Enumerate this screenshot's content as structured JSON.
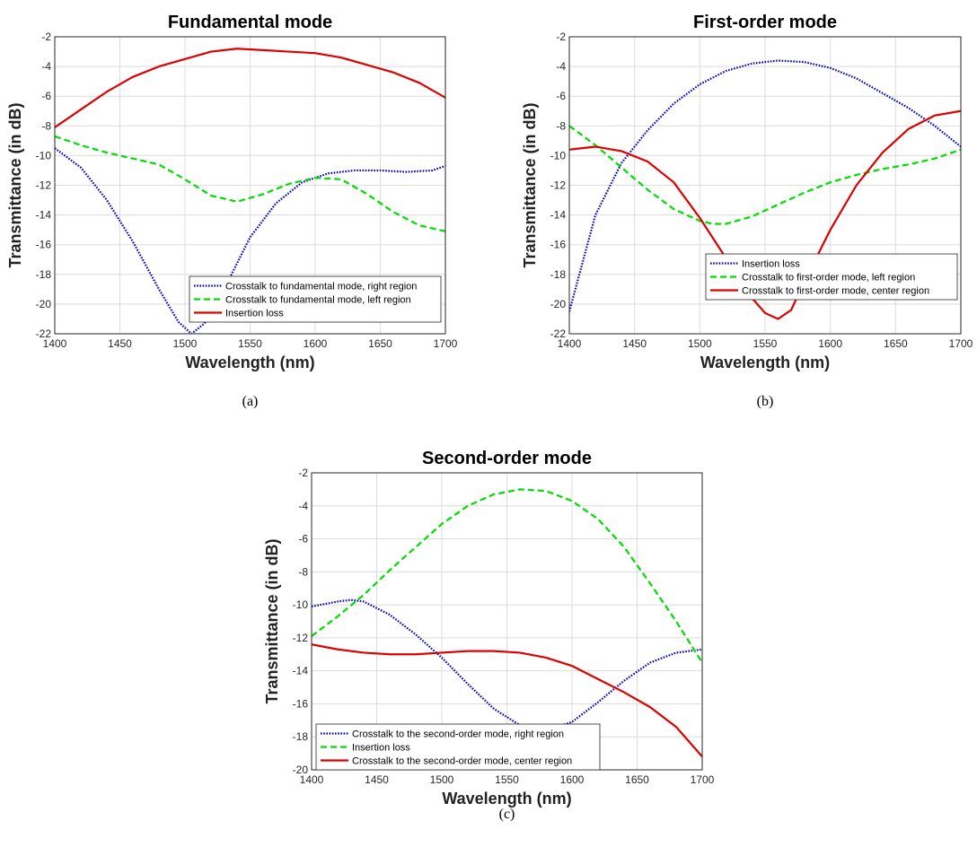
{
  "chart_data": [
    {
      "type": "line",
      "title": "Fundamental mode",
      "xlabel": "Wavelength (nm)",
      "ylabel": "Transmittance (in dB)",
      "caption": "(a)",
      "xlim": [
        1400,
        1700
      ],
      "ylim": [
        -22,
        -2
      ],
      "xticks": [
        "1400",
        "1450",
        "1500",
        "1550",
        "1600",
        "1650",
        "1700"
      ],
      "yticks": [
        "-22",
        "-20",
        "-18",
        "-16",
        "-14",
        "-12",
        "-10",
        "-8",
        "-6",
        "-4",
        "-2"
      ],
      "grid": true,
      "legend_position": "bottom-right",
      "series": [
        {
          "name": "Crosstalk to fundamental mode, right region",
          "style": "dotted",
          "color": "#0000cc",
          "x": [
            1400,
            1420,
            1440,
            1460,
            1480,
            1495,
            1505,
            1515,
            1530,
            1550,
            1570,
            1590,
            1610,
            1630,
            1650,
            1670,
            1690,
            1700
          ],
          "y": [
            -9.5,
            -10.8,
            -13.0,
            -15.8,
            -19.0,
            -21.2,
            -22.0,
            -21.3,
            -19.0,
            -15.5,
            -13.2,
            -11.8,
            -11.2,
            -11.0,
            -11.0,
            -11.1,
            -11.0,
            -10.7
          ]
        },
        {
          "name": "Crosstalk to fundamental mode, left region",
          "style": "dashed",
          "color": "#00dd00",
          "x": [
            1400,
            1420,
            1440,
            1460,
            1480,
            1500,
            1520,
            1540,
            1560,
            1580,
            1600,
            1620,
            1640,
            1660,
            1680,
            1700
          ],
          "y": [
            -8.7,
            -9.3,
            -9.8,
            -10.2,
            -10.6,
            -11.6,
            -12.7,
            -13.1,
            -12.6,
            -11.9,
            -11.5,
            -11.6,
            -12.6,
            -13.8,
            -14.7,
            -15.1
          ]
        },
        {
          "name": "Insertion loss",
          "style": "solid",
          "color": "#dd0000",
          "x": [
            1400,
            1420,
            1440,
            1460,
            1480,
            1500,
            1520,
            1540,
            1560,
            1580,
            1600,
            1620,
            1640,
            1660,
            1680,
            1700
          ],
          "y": [
            -8.1,
            -6.9,
            -5.7,
            -4.7,
            -4.0,
            -3.5,
            -3.0,
            -2.8,
            -2.9,
            -3.0,
            -3.1,
            -3.4,
            -3.9,
            -4.4,
            -5.1,
            -6.1
          ]
        }
      ]
    },
    {
      "type": "line",
      "title": "First-order mode",
      "xlabel": "Wavelength (nm)",
      "ylabel": "Transmittance (in dB)",
      "caption": "(b)",
      "xlim": [
        1400,
        1700
      ],
      "ylim": [
        -22,
        -2
      ],
      "xticks": [
        "1400",
        "1450",
        "1500",
        "1550",
        "1600",
        "1650",
        "1700"
      ],
      "yticks": [
        "-22",
        "-20",
        "-18",
        "-16",
        "-14",
        "-12",
        "-10",
        "-8",
        "-6",
        "-4",
        "-2"
      ],
      "grid": true,
      "legend_position": "bottom-right",
      "series": [
        {
          "name": "Insertion loss",
          "style": "dotted",
          "color": "#0000cc",
          "x": [
            1400,
            1420,
            1440,
            1460,
            1480,
            1500,
            1520,
            1540,
            1560,
            1580,
            1600,
            1620,
            1640,
            1660,
            1680,
            1700
          ],
          "y": [
            -20.5,
            -14.0,
            -10.5,
            -8.3,
            -6.5,
            -5.2,
            -4.3,
            -3.8,
            -3.6,
            -3.7,
            -4.1,
            -4.8,
            -5.8,
            -6.8,
            -8.0,
            -9.4
          ]
        },
        {
          "name": "Crosstalk to first-order mode, left region",
          "style": "dashed",
          "color": "#00dd00",
          "x": [
            1400,
            1420,
            1440,
            1460,
            1480,
            1500,
            1510,
            1520,
            1540,
            1560,
            1580,
            1600,
            1620,
            1640,
            1660,
            1680,
            1700
          ],
          "y": [
            -8.0,
            -9.3,
            -10.8,
            -12.3,
            -13.6,
            -14.4,
            -14.6,
            -14.6,
            -14.1,
            -13.3,
            -12.5,
            -11.8,
            -11.3,
            -10.9,
            -10.6,
            -10.2,
            -9.6
          ]
        },
        {
          "name": "Crosstalk to first-order mode, center region",
          "style": "solid",
          "color": "#dd0000",
          "x": [
            1400,
            1420,
            1440,
            1460,
            1480,
            1500,
            1520,
            1540,
            1550,
            1560,
            1570,
            1580,
            1600,
            1620,
            1640,
            1660,
            1680,
            1700
          ],
          "y": [
            -9.6,
            -9.4,
            -9.7,
            -10.4,
            -11.8,
            -14.2,
            -16.9,
            -19.6,
            -20.6,
            -21.0,
            -20.4,
            -18.5,
            -15.0,
            -12.0,
            -9.8,
            -8.2,
            -7.3,
            -7.0
          ]
        }
      ]
    },
    {
      "type": "line",
      "title": "Second-order mode",
      "xlabel": "Wavelength (nm)",
      "ylabel": "Transmittance (in dB)",
      "caption": "(c)",
      "xlim": [
        1400,
        1700
      ],
      "ylim": [
        -20,
        -2
      ],
      "xticks": [
        "1400",
        "1450",
        "1500",
        "1550",
        "1600",
        "1650",
        "1700"
      ],
      "yticks": [
        "-20",
        "-18",
        "-16",
        "-14",
        "-12",
        "-10",
        "-8",
        "-6",
        "-4",
        "-2"
      ],
      "grid": true,
      "legend_position": "bottom-left",
      "series": [
        {
          "name": "Crosstalk to the second-order mode, right region",
          "style": "dotted",
          "color": "#0000cc",
          "x": [
            1400,
            1420,
            1430,
            1440,
            1460,
            1480,
            1500,
            1520,
            1540,
            1560,
            1580,
            1600,
            1620,
            1640,
            1660,
            1680,
            1700
          ],
          "y": [
            -10.1,
            -9.8,
            -9.7,
            -9.8,
            -10.6,
            -11.8,
            -13.2,
            -14.8,
            -16.3,
            -17.3,
            -17.6,
            -17.1,
            -15.9,
            -14.6,
            -13.5,
            -12.9,
            -12.7
          ]
        },
        {
          "name": "Insertion loss",
          "style": "dashed",
          "color": "#00dd00",
          "x": [
            1400,
            1420,
            1440,
            1460,
            1480,
            1500,
            1520,
            1540,
            1560,
            1580,
            1600,
            1620,
            1640,
            1660,
            1680,
            1700
          ],
          "y": [
            -11.9,
            -10.7,
            -9.4,
            -7.9,
            -6.5,
            -5.1,
            -4.0,
            -3.3,
            -3.0,
            -3.1,
            -3.7,
            -4.8,
            -6.5,
            -8.7,
            -11.0,
            -13.5
          ]
        },
        {
          "name": "Crosstalk to the second-order mode, center region",
          "style": "solid",
          "color": "#dd0000",
          "x": [
            1400,
            1420,
            1440,
            1460,
            1480,
            1500,
            1520,
            1540,
            1560,
            1580,
            1600,
            1620,
            1640,
            1660,
            1680,
            1700
          ],
          "y": [
            -12.4,
            -12.7,
            -12.9,
            -13.0,
            -13.0,
            -12.9,
            -12.8,
            -12.8,
            -12.9,
            -13.2,
            -13.7,
            -14.5,
            -15.3,
            -16.2,
            -17.4,
            -19.2
          ]
        }
      ]
    }
  ]
}
